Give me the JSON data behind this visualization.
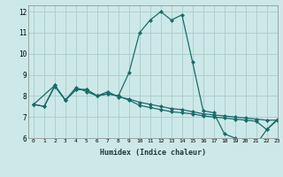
{
  "xlabel": "Humidex (Indice chaleur)",
  "xlim": [
    -0.5,
    23
  ],
  "ylim": [
    6,
    12.3
  ],
  "yticks": [
    6,
    7,
    8,
    9,
    10,
    11,
    12
  ],
  "xticks": [
    0,
    1,
    2,
    3,
    4,
    5,
    6,
    7,
    8,
    9,
    10,
    11,
    12,
    13,
    14,
    15,
    16,
    17,
    18,
    19,
    20,
    21,
    22,
    23
  ],
  "background_color": "#cde8e8",
  "grid_color": "#aacccc",
  "line_color": "#1a6b6b",
  "line1_x": [
    0,
    1,
    2,
    3,
    4,
    5,
    6,
    7,
    8,
    9,
    10,
    11,
    12,
    13,
    14,
    15,
    16,
    17,
    18,
    19,
    20,
    21,
    22,
    23
  ],
  "line1_y": [
    7.6,
    7.5,
    8.5,
    7.8,
    8.4,
    8.2,
    8.0,
    8.1,
    8.0,
    9.1,
    11.0,
    11.6,
    12.0,
    11.6,
    11.85,
    9.6,
    7.3,
    7.2,
    6.2,
    6.0,
    5.8,
    5.7,
    6.4,
    6.9
  ],
  "line2_x": [
    0,
    1,
    2,
    3,
    4,
    5,
    6,
    7,
    8,
    9,
    10,
    11,
    12,
    13,
    14,
    15,
    16,
    17,
    18,
    19,
    20,
    21,
    22,
    23
  ],
  "line2_y": [
    7.6,
    7.5,
    8.45,
    7.8,
    8.3,
    8.3,
    8.0,
    8.2,
    7.95,
    7.85,
    7.7,
    7.6,
    7.5,
    7.4,
    7.35,
    7.25,
    7.15,
    7.1,
    7.05,
    7.0,
    6.95,
    6.9,
    6.85,
    6.85
  ],
  "line3_x": [
    0,
    2,
    3,
    4,
    5,
    6,
    7,
    8,
    9,
    10,
    11,
    12,
    13,
    14,
    15,
    16,
    17,
    18,
    19,
    20,
    21,
    22,
    23
  ],
  "line3_y": [
    7.6,
    8.5,
    7.8,
    8.3,
    8.3,
    8.0,
    8.1,
    8.0,
    7.8,
    7.55,
    7.45,
    7.35,
    7.25,
    7.2,
    7.15,
    7.05,
    7.0,
    6.95,
    6.9,
    6.85,
    6.8,
    6.4,
    6.85
  ]
}
